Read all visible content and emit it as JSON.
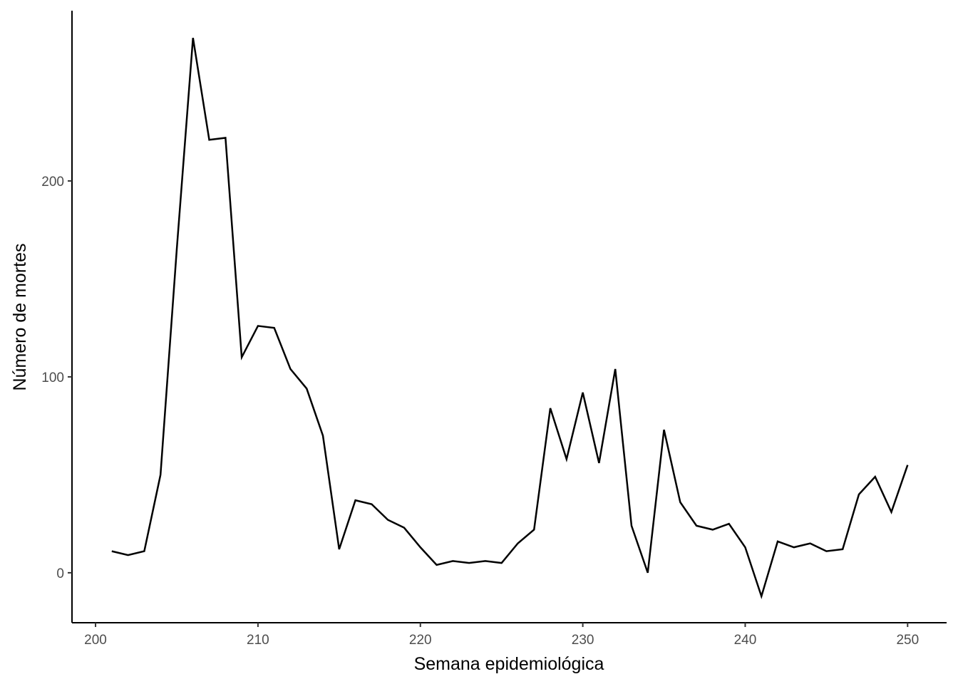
{
  "chart_data": {
    "type": "line",
    "x_label": "Semana epidemiológica",
    "y_label": "Número de mortes",
    "x": [
      201,
      202,
      203,
      204,
      205,
      206,
      207,
      208,
      209,
      210,
      211,
      212,
      213,
      214,
      215,
      216,
      217,
      218,
      219,
      220,
      221,
      222,
      223,
      224,
      225,
      226,
      227,
      228,
      229,
      230,
      231,
      232,
      233,
      234,
      235,
      236,
      237,
      238,
      239,
      240,
      241,
      242,
      243,
      244,
      245,
      246,
      247,
      248,
      249,
      250
    ],
    "series": [
      {
        "color": "#000000",
        "values": [
          11,
          9,
          11,
          50,
          165,
          273,
          221,
          222,
          110,
          126,
          125,
          104,
          94,
          70,
          12,
          37,
          35,
          27,
          23,
          13,
          4,
          6,
          5,
          6,
          5,
          15,
          22,
          84,
          58,
          92,
          56,
          104,
          24,
          0,
          73,
          36,
          24,
          22,
          25,
          13,
          -12,
          16,
          13,
          15,
          11,
          12,
          40,
          49,
          31,
          55
        ]
      }
    ],
    "xlim": [
      198.55,
      252.4
    ],
    "ylim": [
      -25.5,
      286.9
    ],
    "xticks": [
      200,
      210,
      220,
      230,
      240,
      250
    ],
    "yticks": [
      0,
      100,
      200
    ],
    "grid": false
  }
}
